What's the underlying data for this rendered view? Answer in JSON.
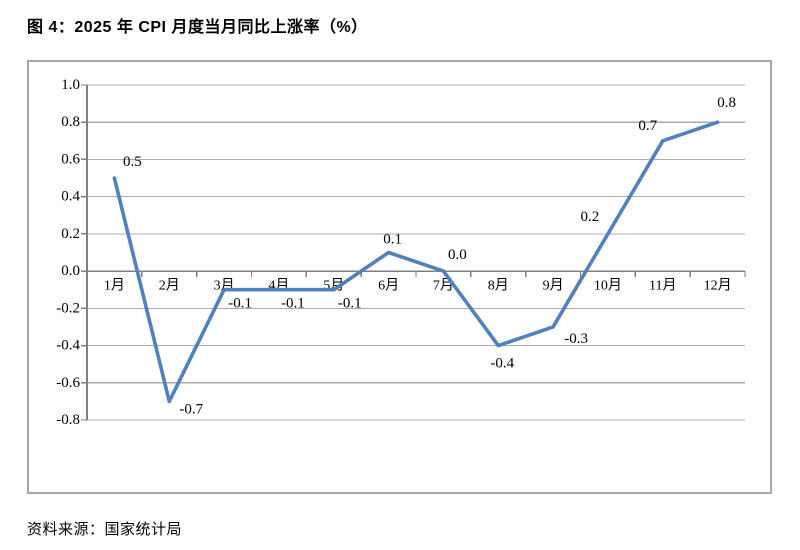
{
  "page": {
    "title": "图 4：2025 年 CPI 月度当月同比上涨率（%）",
    "source": "资料来源：国家统计局"
  },
  "chart_data": {
    "type": "line",
    "title": "2025 年 CPI 月度当月同比上涨率（%）",
    "categories": [
      "1月",
      "2月",
      "3月",
      "4月",
      "5月",
      "6月",
      "7月",
      "8月",
      "9月",
      "10月",
      "11月",
      "12月"
    ],
    "values": [
      0.5,
      -0.7,
      -0.1,
      -0.1,
      -0.1,
      0.1,
      0.0,
      -0.4,
      -0.3,
      0.2,
      0.7,
      0.8
    ],
    "data_labels": [
      "0.5",
      "-0.7",
      "-0.1",
      "-0.1",
      "-0.1",
      "0.1",
      "0.0",
      "-0.4",
      "-0.3",
      "0.2",
      "0.7",
      "0.8"
    ],
    "ytick_labels": [
      "1.0",
      "0.8",
      "0.6",
      "0.4",
      "0.2",
      "0.0",
      "-0.2",
      "-0.4",
      "-0.6",
      "-0.8"
    ],
    "ylim": [
      -0.8,
      1.0
    ],
    "ytick_step": 0.2,
    "xlabel": "",
    "ylabel": "",
    "grid": true,
    "legend": "none",
    "line_color": "#4F81BD",
    "gridline_color": "#ababab",
    "axis_color": "#7f7f7f",
    "text_color": "#000000"
  }
}
